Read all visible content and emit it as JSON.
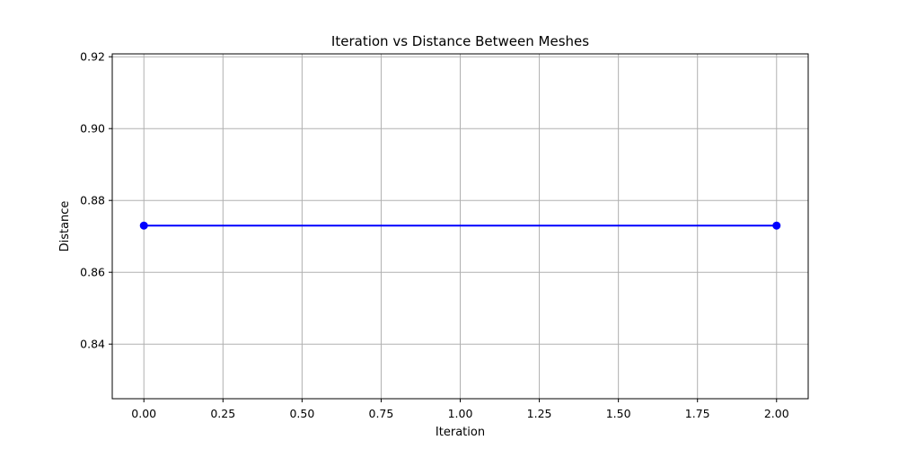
{
  "chart_data": {
    "type": "line",
    "title": "Iteration vs Distance Between Meshes",
    "xlabel": "Iteration",
    "ylabel": "Distance",
    "xlim": [
      -0.1,
      2.1
    ],
    "ylim": [
      0.8248,
      0.9208
    ],
    "xticks": [
      0.0,
      0.25,
      0.5,
      0.75,
      1.0,
      1.25,
      1.5,
      1.75,
      2.0
    ],
    "xtick_labels": [
      "0.00",
      "0.25",
      "0.50",
      "0.75",
      "1.00",
      "1.25",
      "1.50",
      "1.75",
      "2.00"
    ],
    "yticks": [
      0.84,
      0.86,
      0.88,
      0.9,
      0.92
    ],
    "ytick_labels": [
      "0.84",
      "0.86",
      "0.88",
      "0.90",
      "0.92"
    ],
    "grid": true,
    "series": [
      {
        "x": [
          0,
          2
        ],
        "y": [
          0.873,
          0.873
        ],
        "color": "#0000ff",
        "marker": "circle"
      }
    ]
  }
}
